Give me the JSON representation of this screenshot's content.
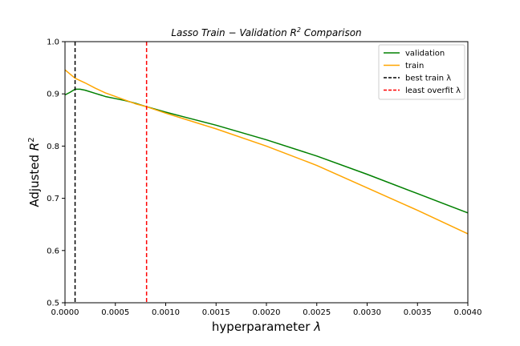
{
  "chart_data": {
    "type": "line",
    "title_main": "Lasso Train − Validation R",
    "title_sup": "2",
    "title_tail": " Comparison",
    "xlabel_main": "hyperparameter ",
    "xlabel_sym": "λ",
    "ylabel_main": "Adjusted ",
    "ylabel_sym": "R",
    "ylabel_sup": "2",
    "xlim": [
      0,
      0.004
    ],
    "ylim": [
      0.5,
      1.0
    ],
    "xticks": [
      0,
      0.0005,
      0.001,
      0.0015,
      0.002,
      0.0025,
      0.003,
      0.0035,
      0.004
    ],
    "xtick_labels": [
      "0.0000",
      "0.0005",
      "0.0010",
      "0.0015",
      "0.0020",
      "0.0025",
      "0.0030",
      "0.0035",
      "0.0040"
    ],
    "yticks": [
      0.5,
      0.6,
      0.7,
      0.8,
      0.9,
      1.0
    ],
    "ytick_labels": [
      "0.5",
      "0.6",
      "0.7",
      "0.8",
      "0.9",
      "1.0"
    ],
    "grid": false,
    "legend_position": "top-right",
    "series": [
      {
        "name": "validation",
        "color": "#008000",
        "x": [
          0,
          5e-05,
          0.0001,
          0.00015,
          0.0002,
          0.0003,
          0.0004,
          0.0005,
          0.0006,
          0.0007,
          0.0008,
          0.001,
          0.0012,
          0.0015,
          0.002,
          0.0025,
          0.003,
          0.0035,
          0.004
        ],
        "y": [
          0.898,
          0.903,
          0.909,
          0.909,
          0.907,
          0.901,
          0.895,
          0.891,
          0.887,
          0.882,
          0.876,
          0.865,
          0.855,
          0.84,
          0.812,
          0.781,
          0.746,
          0.709,
          0.672
        ]
      },
      {
        "name": "train",
        "color": "#ffa500",
        "x": [
          0,
          0.0001,
          0.0002,
          0.0003,
          0.0004,
          0.0005,
          0.0006,
          0.0007,
          0.0008,
          0.001,
          0.0012,
          0.0015,
          0.002,
          0.0025,
          0.003,
          0.0035,
          0.004
        ],
        "y": [
          0.946,
          0.93,
          0.921,
          0.911,
          0.902,
          0.895,
          0.888,
          0.881,
          0.876,
          0.863,
          0.851,
          0.833,
          0.8,
          0.763,
          0.72,
          0.677,
          0.632
        ]
      }
    ],
    "vlines": [
      {
        "name": "best train λ",
        "x": 0.0001,
        "color": "#000000"
      },
      {
        "name": "least overfit λ",
        "x": 0.00081,
        "color": "#ff0000"
      }
    ]
  }
}
